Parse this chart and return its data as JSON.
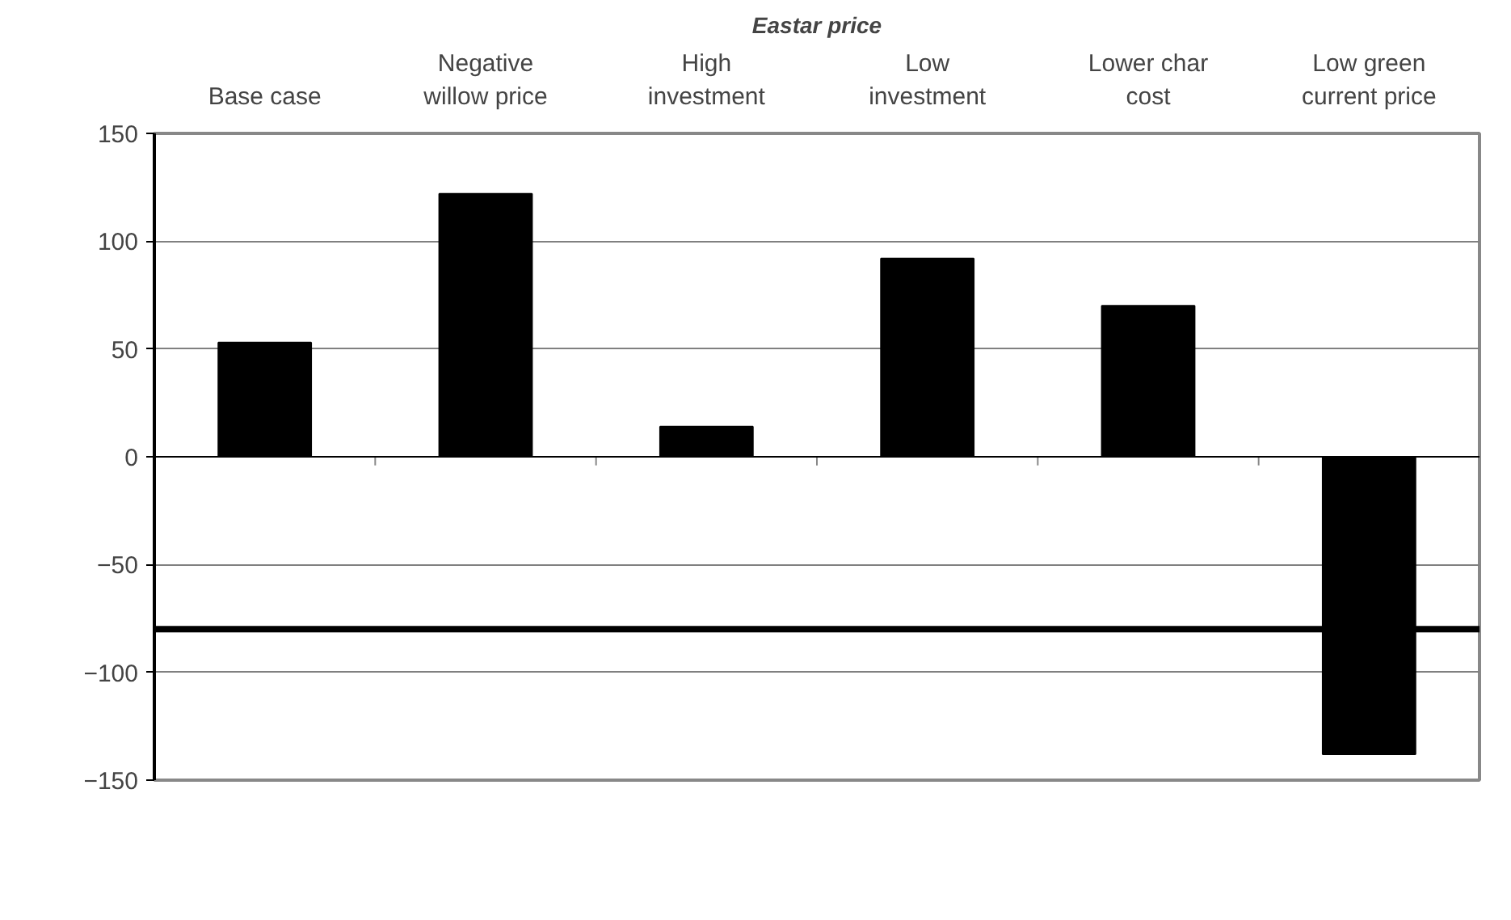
{
  "chart_data": {
    "type": "bar",
    "title": "Eastar price",
    "categories": [
      "Base case",
      "Negative willow price",
      "High investment",
      "Low investment",
      "Lower char cost",
      "Low green current price"
    ],
    "values": [
      53,
      122,
      14,
      92,
      70,
      -138
    ],
    "color": "#000000",
    "ylim": [
      -150,
      150
    ],
    "yticks": [
      -150,
      -100,
      -50,
      0,
      50,
      100,
      150
    ],
    "grid": "y",
    "ref_lines": [
      {
        "axis": "y",
        "value": -80,
        "color": "#000000",
        "line_style": "solid"
      }
    ]
  }
}
